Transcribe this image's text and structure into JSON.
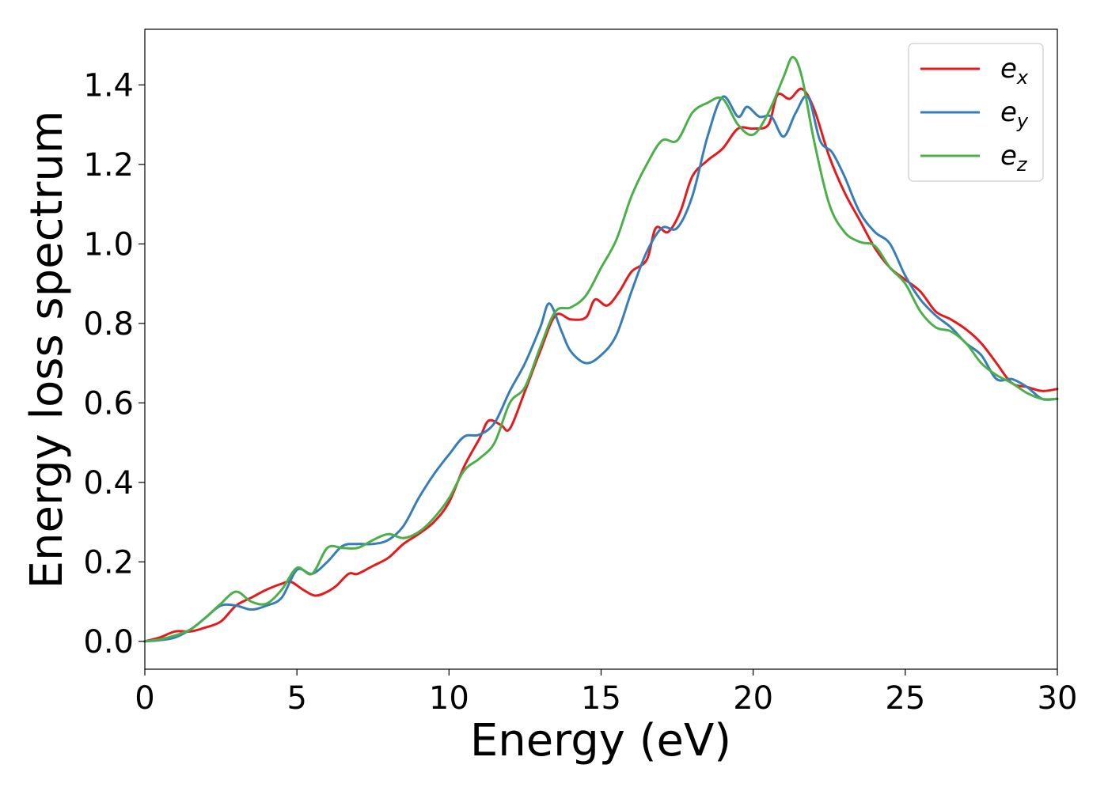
{
  "chart_data": {
    "type": "line",
    "title": "",
    "xlabel": "Energy (eV)",
    "ylabel": "Energy loss spectrum",
    "xlim": [
      0,
      30
    ],
    "ylim": [
      -0.07,
      1.54
    ],
    "x_ticks": [
      0,
      5,
      10,
      15,
      20,
      25,
      30
    ],
    "x_tick_labels": [
      "0",
      "5",
      "10",
      "15",
      "20",
      "25",
      "30"
    ],
    "y_ticks": [
      0.0,
      0.2,
      0.4,
      0.6,
      0.8,
      1.0,
      1.2,
      1.4
    ],
    "y_tick_labels": [
      "0.0",
      "0.2",
      "0.4",
      "0.6",
      "0.8",
      "1.0",
      "1.2",
      "1.4"
    ],
    "grid": false,
    "legend_position": "top-right",
    "series": [
      {
        "name": "e",
        "subscript": "x",
        "color": "#e41a1c",
        "x": [
          0,
          0.5,
          1,
          1.5,
          2,
          2.5,
          3,
          3.5,
          4,
          4.5,
          4.8,
          5.2,
          5.6,
          6,
          6.3,
          6.7,
          7,
          7.5,
          8,
          8.5,
          9,
          9.5,
          10,
          10.5,
          11,
          11.3,
          11.7,
          12,
          12.5,
          13,
          13.5,
          14,
          14.5,
          14.8,
          15.2,
          15.6,
          16,
          16.5,
          16.8,
          17.2,
          17.6,
          18,
          18.5,
          19,
          19.5,
          20,
          20.5,
          20.8,
          21.2,
          21.6,
          22,
          22.5,
          23,
          23.5,
          24,
          24.5,
          25,
          25.5,
          26,
          26.5,
          27,
          27.5,
          28,
          28.5,
          29,
          29.5,
          30
        ],
        "y": [
          0.0,
          0.01,
          0.025,
          0.025,
          0.035,
          0.05,
          0.09,
          0.11,
          0.13,
          0.145,
          0.15,
          0.13,
          0.115,
          0.125,
          0.14,
          0.17,
          0.17,
          0.19,
          0.21,
          0.245,
          0.27,
          0.3,
          0.35,
          0.44,
          0.51,
          0.555,
          0.545,
          0.535,
          0.63,
          0.73,
          0.82,
          0.81,
          0.815,
          0.86,
          0.845,
          0.88,
          0.93,
          0.96,
          1.04,
          1.03,
          1.08,
          1.17,
          1.21,
          1.24,
          1.29,
          1.29,
          1.3,
          1.375,
          1.365,
          1.39,
          1.34,
          1.22,
          1.13,
          1.06,
          0.99,
          0.94,
          0.91,
          0.88,
          0.83,
          0.81,
          0.785,
          0.75,
          0.7,
          0.65,
          0.64,
          0.63,
          0.635
        ]
      },
      {
        "name": "e",
        "subscript": "y",
        "color": "#377eb8",
        "x": [
          0,
          0.5,
          1,
          1.5,
          2,
          2.5,
          3,
          3.5,
          4,
          4.5,
          5,
          5.5,
          6,
          6.5,
          7,
          7.5,
          8,
          8.5,
          9,
          9.5,
          10,
          10.5,
          11,
          11.5,
          12,
          12.5,
          13,
          13.3,
          13.7,
          14,
          14.5,
          15,
          15.5,
          16,
          16.5,
          17,
          17.5,
          18,
          18.5,
          19,
          19.5,
          19.8,
          20.2,
          20.6,
          21,
          21.4,
          21.8,
          22.2,
          22.6,
          23,
          23.5,
          24,
          24.5,
          25,
          25.5,
          26,
          26.5,
          27,
          27.5,
          28,
          28.5,
          29,
          29.5,
          30
        ],
        "y": [
          0.0,
          0.003,
          0.01,
          0.03,
          0.06,
          0.09,
          0.09,
          0.08,
          0.09,
          0.11,
          0.18,
          0.17,
          0.2,
          0.24,
          0.245,
          0.245,
          0.255,
          0.29,
          0.36,
          0.42,
          0.47,
          0.515,
          0.52,
          0.55,
          0.63,
          0.7,
          0.79,
          0.85,
          0.78,
          0.73,
          0.7,
          0.72,
          0.77,
          0.88,
          0.98,
          1.04,
          1.04,
          1.12,
          1.27,
          1.37,
          1.32,
          1.345,
          1.32,
          1.32,
          1.27,
          1.33,
          1.37,
          1.26,
          1.23,
          1.17,
          1.08,
          1.03,
          1.0,
          0.92,
          0.86,
          0.82,
          0.79,
          0.75,
          0.72,
          0.66,
          0.66,
          0.64,
          0.61,
          0.61
        ]
      },
      {
        "name": "e",
        "subscript": "z",
        "color": "#4daf4a",
        "x": [
          0,
          0.5,
          1,
          1.5,
          2,
          2.5,
          3,
          3.5,
          4,
          4.5,
          5,
          5.5,
          6,
          6.5,
          7,
          7.5,
          8,
          8.5,
          9,
          9.5,
          10,
          10.5,
          11,
          11.5,
          12,
          12.5,
          13,
          13.5,
          14,
          14.5,
          15,
          15.5,
          16,
          16.5,
          17,
          17.5,
          18,
          18.5,
          19,
          19.5,
          20,
          20.5,
          21,
          21.3,
          21.6,
          22,
          22.5,
          23,
          23.5,
          24,
          24.5,
          25,
          25.5,
          26,
          26.5,
          27,
          27.5,
          28,
          28.5,
          29,
          29.5,
          30
        ],
        "y": [
          0.0,
          0.005,
          0.015,
          0.03,
          0.06,
          0.095,
          0.125,
          0.1,
          0.095,
          0.13,
          0.185,
          0.17,
          0.235,
          0.235,
          0.235,
          0.255,
          0.27,
          0.26,
          0.275,
          0.31,
          0.36,
          0.43,
          0.46,
          0.5,
          0.6,
          0.64,
          0.74,
          0.83,
          0.84,
          0.87,
          0.94,
          1.01,
          1.12,
          1.2,
          1.26,
          1.26,
          1.33,
          1.355,
          1.365,
          1.3,
          1.275,
          1.33,
          1.42,
          1.47,
          1.42,
          1.26,
          1.1,
          1.03,
          1.005,
          0.995,
          0.94,
          0.9,
          0.83,
          0.79,
          0.78,
          0.75,
          0.7,
          0.67,
          0.65,
          0.625,
          0.61,
          0.61
        ]
      }
    ]
  }
}
